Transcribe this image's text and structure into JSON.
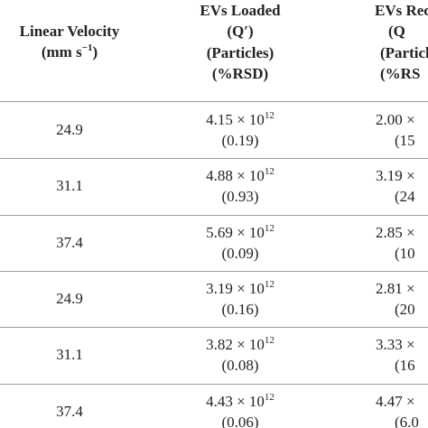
{
  "table": {
    "header": {
      "velocity": {
        "label": "Linear Velocity",
        "unit": "(mm s",
        "unit_exp": "−1",
        "unit_close": ")"
      },
      "loaded": [
        "EVs Loaded",
        "(Q′)",
        "(Particles)",
        "(%RSD)"
      ],
      "recovered": [
        "EVs Rec",
        "(Q",
        "(Particl",
        "(%RS"
      ]
    },
    "rows": [
      {
        "velocity": "24.9",
        "loaded": "4.15 × 10",
        "loaded_exp": "12",
        "loaded_rsd": "(0.19)",
        "recovered": "2.00 ×",
        "recovered_rsd": "(15"
      },
      {
        "velocity": "31.1",
        "loaded": "4.88 × 10",
        "loaded_exp": "12",
        "loaded_rsd": "(0.93)",
        "recovered": "3.19 ×",
        "recovered_rsd": "(24"
      },
      {
        "velocity": "37.4",
        "loaded": "5.69 × 10",
        "loaded_exp": "12",
        "loaded_rsd": "(0.09)",
        "recovered": "2.85 ×",
        "recovered_rsd": "(10"
      },
      {
        "velocity": "24.9",
        "loaded": "3.19 × 10",
        "loaded_exp": "12",
        "loaded_rsd": "(0.16)",
        "recovered": "2.81 ×",
        "recovered_rsd": "(20"
      },
      {
        "velocity": "31.1",
        "loaded": "3.82 × 10",
        "loaded_exp": "12",
        "loaded_rsd": "(0.08)",
        "recovered": "3.33 ×",
        "recovered_rsd": "(16"
      },
      {
        "velocity": "37.4",
        "loaded": "4.43 × 10",
        "loaded_exp": "12",
        "loaded_rsd": "(0.06)",
        "recovered": "4.47 ×",
        "recovered_rsd": "(6.0"
      }
    ]
  }
}
